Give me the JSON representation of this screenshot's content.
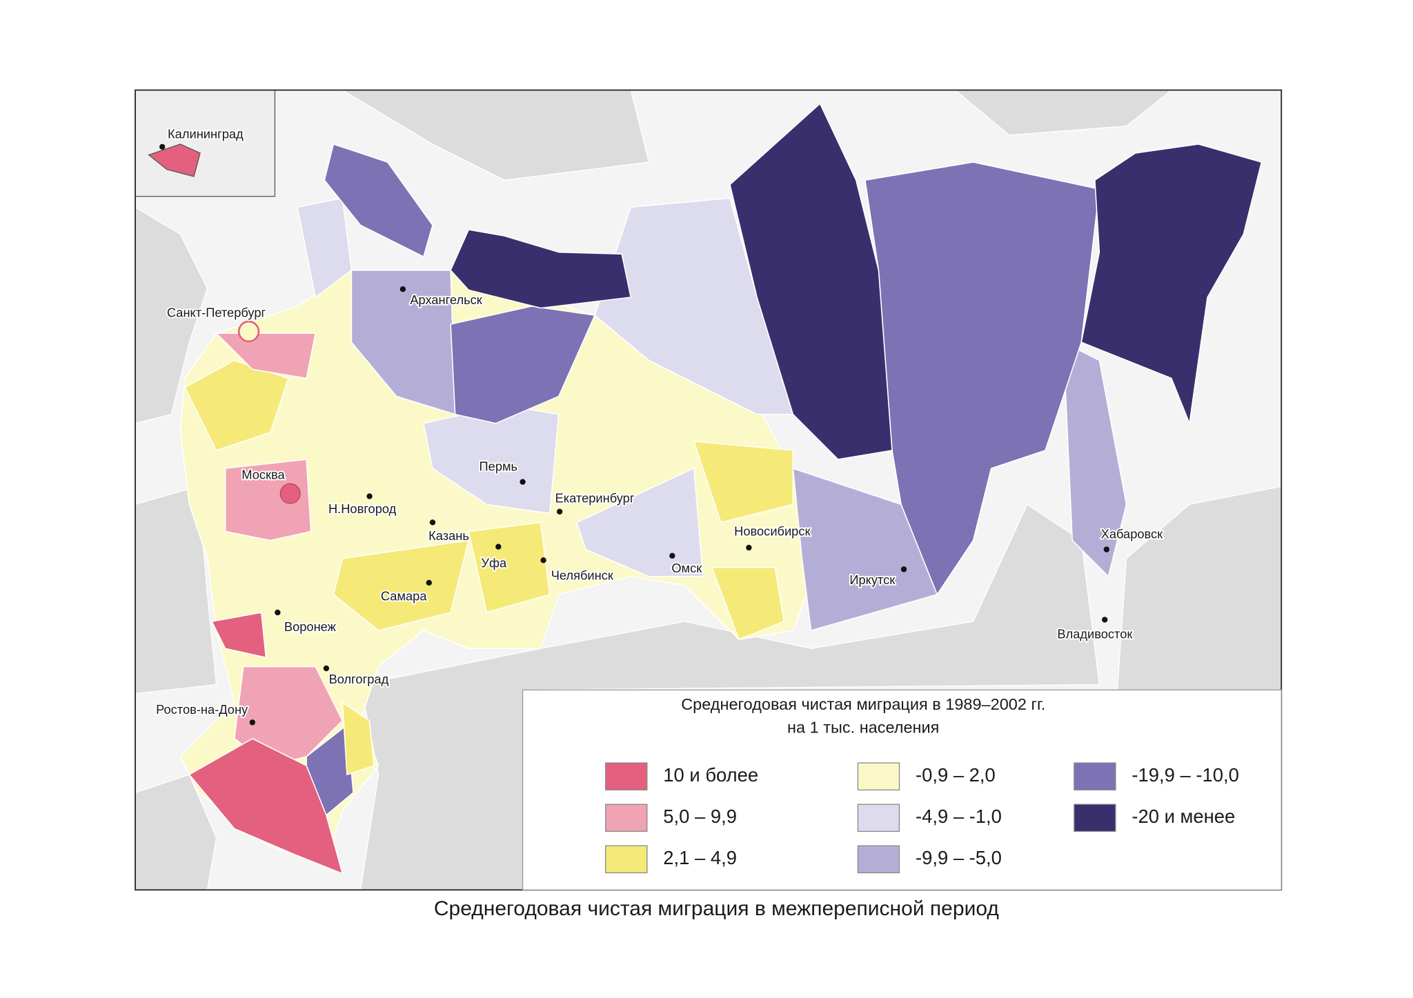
{
  "map": {
    "caption": "Среднегодовая чистая миграция в межпереписной период",
    "legend": {
      "title": [
        "Среднегодовая чистая миграция в 1989–2002 гг.",
        "на 1 тыс. населения"
      ],
      "items": [
        {
          "label": "10 и более",
          "color": "#e3617e"
        },
        {
          "label": "5,0 – 9,9",
          "color": "#f0a3b4"
        },
        {
          "label": "2,1 – 4,9",
          "color": "#f5ea78"
        },
        {
          "label": "-0,9 – 2,0",
          "color": "#fcf9c8"
        },
        {
          "label": "-4,9 – -1,0",
          "color": "#dddbee"
        },
        {
          "label": "-9,9 – -5,0",
          "color": "#b4aed7"
        },
        {
          "label": "-19,9 – -10,0",
          "color": "#7c72b4"
        },
        {
          "label": "-20 и менее",
          "color": "#3a2f6d"
        }
      ]
    },
    "cities": [
      {
        "name": "Калининград"
      },
      {
        "name": "Архангельск"
      },
      {
        "name": "Санкт-Петербург"
      },
      {
        "name": "Москва"
      },
      {
        "name": "Н.Новгород"
      },
      {
        "name": "Казань"
      },
      {
        "name": "Пермь"
      },
      {
        "name": "Екатеринбург"
      },
      {
        "name": "Уфа"
      },
      {
        "name": "Челябинск"
      },
      {
        "name": "Самара"
      },
      {
        "name": "Омск"
      },
      {
        "name": "Новосибирск"
      },
      {
        "name": "Иркутск"
      },
      {
        "name": "Хабаровск"
      },
      {
        "name": "Владивосток"
      },
      {
        "name": "Воронеж"
      },
      {
        "name": "Волгоград"
      },
      {
        "name": "Ростов-на-Дону"
      }
    ]
  }
}
